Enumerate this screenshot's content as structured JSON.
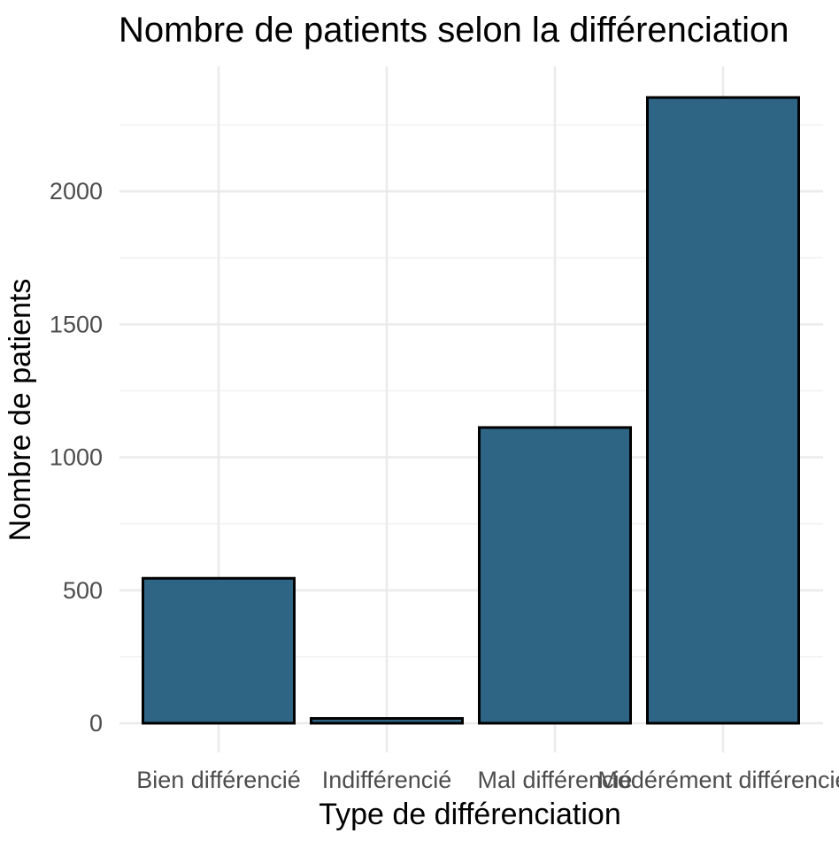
{
  "chart_data": {
    "type": "bar",
    "title": "Nombre de patients selon la  différenciation",
    "xlabel": "Type de différenciation",
    "ylabel": "Nombre de patients",
    "categories": [
      "Bien différencié",
      "Indifférencié",
      "Mal différencié",
      "Modérément différencié"
    ],
    "values": [
      545,
      18,
      1112,
      2353
    ],
    "ylim": [
      -110,
      2470
    ],
    "yticks": [
      0,
      500,
      1000,
      1500,
      2000
    ],
    "grid": true,
    "bar_color": "#2e6585",
    "bar_border_color": "#000000"
  }
}
